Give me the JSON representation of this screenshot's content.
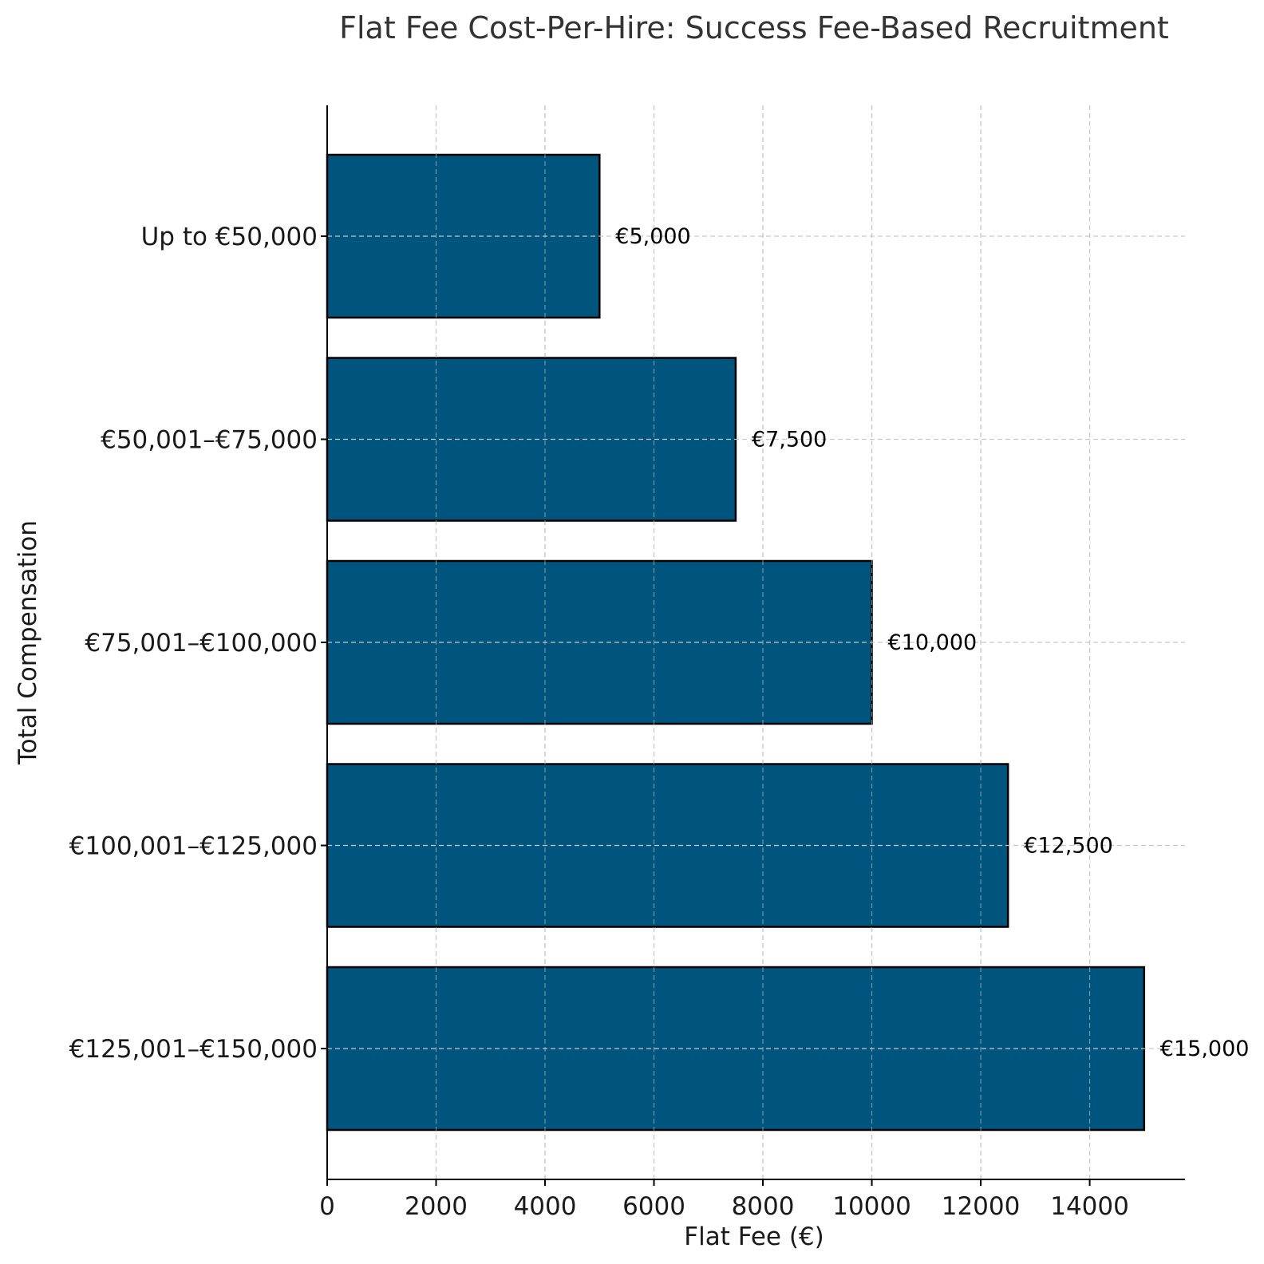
{
  "chart_data": {
    "type": "bar",
    "orientation": "horizontal",
    "title": "Flat Fee Cost-Per-Hire: Success Fee-Based Recruitment",
    "xlabel": "Flat Fee (€)",
    "ylabel": "Total Compensation",
    "categories": [
      "Up to €50,000",
      "€50,001–€75,000",
      "€75,001–€100,000",
      "€100,001–€125,000",
      "€125,001–€150,000"
    ],
    "values": [
      5000,
      7500,
      10000,
      12500,
      15000
    ],
    "data_labels": [
      "€5,000",
      "€7,500",
      "€10,000",
      "€12,500",
      "€15,000"
    ],
    "xlim": [
      0,
      15750
    ],
    "x_ticks": [
      0,
      2000,
      4000,
      6000,
      8000,
      10000,
      12000,
      14000
    ],
    "x_tick_labels": [
      "0",
      "2000",
      "4000",
      "6000",
      "8000",
      "10000",
      "12000",
      "14000"
    ],
    "grid": true,
    "bar_color": "#00557F",
    "bar_edge_color": "#000000",
    "grid_color": "#c8c8c8",
    "title_color": "#333333"
  }
}
